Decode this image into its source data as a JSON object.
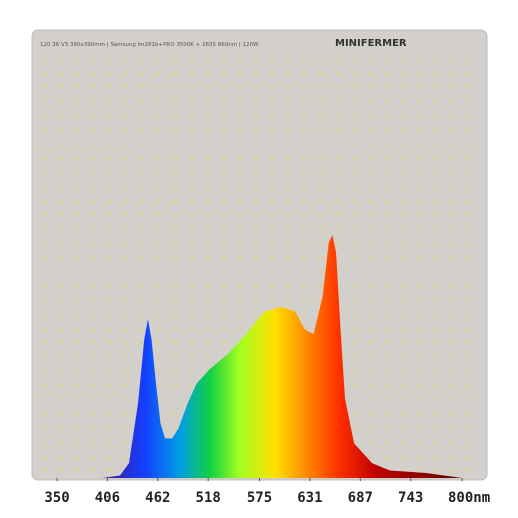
{
  "board_text": "120.36 V3  390x390mm | Samsung lm281b+PRO 3500K + 2835 660nm | 120W",
  "brand": "MINIFERMER",
  "chart_data": {
    "type": "area",
    "x": [
      400,
      420,
      430,
      440,
      447,
      451,
      455,
      460,
      465,
      470,
      478,
      485,
      495,
      505,
      520,
      540,
      560,
      580,
      600,
      615,
      625,
      635,
      645,
      652,
      656,
      660,
      665,
      670,
      680,
      700,
      720,
      760,
      800
    ],
    "values": [
      0,
      0.01,
      0.06,
      0.3,
      0.56,
      0.64,
      0.56,
      0.38,
      0.22,
      0.16,
      0.16,
      0.2,
      0.3,
      0.38,
      0.44,
      0.5,
      0.58,
      0.67,
      0.69,
      0.67,
      0.6,
      0.58,
      0.73,
      0.95,
      0.98,
      0.91,
      0.6,
      0.32,
      0.14,
      0.06,
      0.03,
      0.02,
      0
    ],
    "xlim": [
      350,
      800
    ],
    "ylim": [
      0,
      1
    ],
    "xticks": [
      350,
      406,
      462,
      518,
      575,
      631,
      687,
      743,
      {
        "value": 800,
        "label": "800nm"
      }
    ]
  }
}
